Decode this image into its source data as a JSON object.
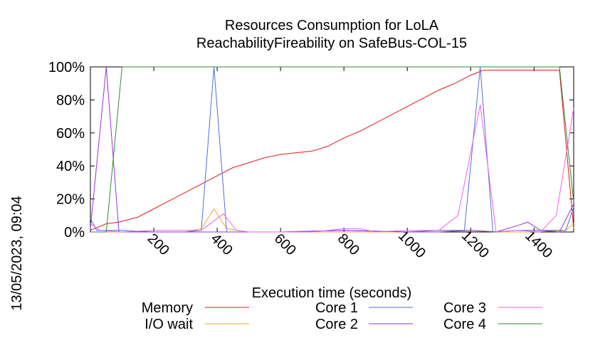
{
  "chart_data": {
    "type": "line",
    "title_line1": "Resources Consumption for LoLA",
    "title_line2": "ReachabilityFireability on SafeBus-COL-15",
    "xlabel": "Execution time (seconds)",
    "ylabel": "",
    "timestamp": "13/05/2023, 09:04",
    "xlim": [
      0,
      1525
    ],
    "ylim": [
      0,
      100
    ],
    "x_ticks": [
      200,
      400,
      600,
      800,
      1000,
      1200,
      1400
    ],
    "y_ticks": [
      0,
      20,
      40,
      60,
      80,
      100
    ],
    "y_tick_labels": [
      "0%",
      "20%",
      "40%",
      "60%",
      "80%",
      "100%"
    ],
    "grid": false,
    "legend_position": "bottom",
    "series": [
      {
        "name": "Memory",
        "color": "#e41a1c",
        "points": [
          [
            0,
            1
          ],
          [
            50,
            5
          ],
          [
            90,
            6
          ],
          [
            150,
            9
          ],
          [
            200,
            14
          ],
          [
            250,
            19
          ],
          [
            300,
            24
          ],
          [
            350,
            29
          ],
          [
            400,
            34
          ],
          [
            450,
            39
          ],
          [
            500,
            42
          ],
          [
            550,
            45
          ],
          [
            600,
            47
          ],
          [
            650,
            48
          ],
          [
            700,
            49
          ],
          [
            750,
            52
          ],
          [
            800,
            57
          ],
          [
            850,
            61
          ],
          [
            900,
            66
          ],
          [
            950,
            71
          ],
          [
            1000,
            76
          ],
          [
            1050,
            81
          ],
          [
            1100,
            86
          ],
          [
            1150,
            90
          ],
          [
            1200,
            95
          ],
          [
            1240,
            98
          ],
          [
            1300,
            98
          ],
          [
            1400,
            98
          ],
          [
            1480,
            98
          ],
          [
            1525,
            2
          ]
        ]
      },
      {
        "name": "I/O wait",
        "color": "#f5a623",
        "points": [
          [
            0,
            0
          ],
          [
            50,
            0
          ],
          [
            100,
            0
          ],
          [
            200,
            0
          ],
          [
            300,
            0
          ],
          [
            350,
            2
          ],
          [
            390,
            14
          ],
          [
            430,
            2
          ],
          [
            500,
            0
          ],
          [
            600,
            0
          ],
          [
            800,
            0
          ],
          [
            1000,
            0
          ],
          [
            1100,
            1
          ],
          [
            1200,
            1
          ],
          [
            1300,
            0
          ],
          [
            1400,
            0
          ],
          [
            1500,
            1
          ],
          [
            1525,
            5
          ]
        ]
      },
      {
        "name": "Core 1",
        "color": "#4f6fd8",
        "points": [
          [
            0,
            8
          ],
          [
            20,
            1
          ],
          [
            50,
            1
          ],
          [
            100,
            1
          ],
          [
            200,
            0
          ],
          [
            300,
            0
          ],
          [
            350,
            1
          ],
          [
            390,
            100
          ],
          [
            430,
            0
          ],
          [
            500,
            0
          ],
          [
            600,
            0
          ],
          [
            800,
            1
          ],
          [
            1000,
            0
          ],
          [
            1100,
            1
          ],
          [
            1180,
            1
          ],
          [
            1230,
            100
          ],
          [
            1270,
            0
          ],
          [
            1350,
            1
          ],
          [
            1400,
            1
          ],
          [
            1500,
            1
          ],
          [
            1525,
            15
          ]
        ]
      },
      {
        "name": "Core 2",
        "color": "#9b30d9",
        "points": [
          [
            0,
            2
          ],
          [
            50,
            100
          ],
          [
            90,
            0
          ],
          [
            200,
            0
          ],
          [
            300,
            0
          ],
          [
            400,
            0
          ],
          [
            500,
            0
          ],
          [
            600,
            0
          ],
          [
            800,
            1
          ],
          [
            1000,
            0
          ],
          [
            1100,
            0
          ],
          [
            1200,
            1
          ],
          [
            1280,
            0
          ],
          [
            1350,
            4
          ],
          [
            1380,
            6
          ],
          [
            1420,
            1
          ],
          [
            1480,
            0
          ],
          [
            1525,
            17
          ]
        ]
      },
      {
        "name": "Core 3",
        "color": "#f060f0",
        "points": [
          [
            0,
            5
          ],
          [
            30,
            1
          ],
          [
            100,
            0
          ],
          [
            200,
            1
          ],
          [
            300,
            1
          ],
          [
            350,
            1
          ],
          [
            420,
            11
          ],
          [
            460,
            1
          ],
          [
            500,
            0
          ],
          [
            700,
            0
          ],
          [
            750,
            1
          ],
          [
            800,
            2
          ],
          [
            850,
            2
          ],
          [
            900,
            0
          ],
          [
            1000,
            1
          ],
          [
            1100,
            1
          ],
          [
            1160,
            10
          ],
          [
            1230,
            77
          ],
          [
            1280,
            0
          ],
          [
            1350,
            1
          ],
          [
            1420,
            0
          ],
          [
            1470,
            10
          ],
          [
            1525,
            75
          ]
        ]
      },
      {
        "name": "Core 4",
        "color": "#2e8b2e",
        "points": [
          [
            0,
            0
          ],
          [
            50,
            0
          ],
          [
            100,
            100
          ],
          [
            200,
            100
          ],
          [
            400,
            100
          ],
          [
            600,
            100
          ],
          [
            800,
            100
          ],
          [
            1000,
            100
          ],
          [
            1200,
            100
          ],
          [
            1300,
            100
          ],
          [
            1400,
            100
          ],
          [
            1480,
            100
          ],
          [
            1525,
            18
          ]
        ]
      }
    ]
  }
}
